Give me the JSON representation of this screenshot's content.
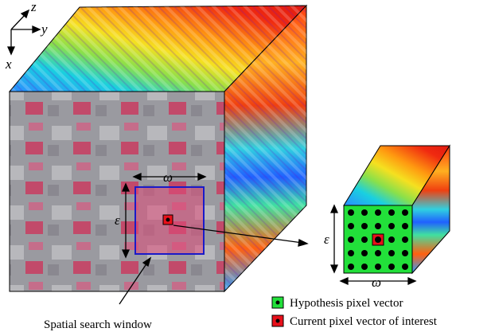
{
  "axes": {
    "z": "z",
    "y": "y",
    "x": "x"
  },
  "large_cube": {
    "width_label": "ω",
    "height_label": "ε",
    "window_caption": "Spatial search window"
  },
  "small_cube": {
    "width_label": "ω",
    "height_label": "ε"
  },
  "legend": [
    {
      "label": "Hypothesis pixel vector",
      "color": "#22e03a"
    },
    {
      "label": "Current pixel vector of interest",
      "color": "#e8101a"
    }
  ]
}
